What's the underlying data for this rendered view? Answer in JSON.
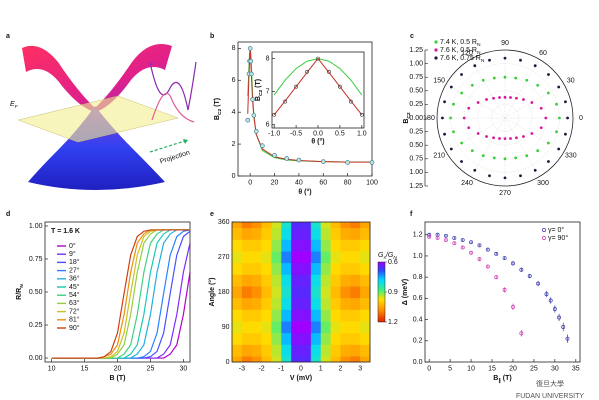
{
  "panel_labels": [
    "a",
    "b",
    "c",
    "d",
    "e",
    "f"
  ],
  "illustration": {
    "fermi_label": [
      "E",
      "F"
    ],
    "projection": "Projection"
  },
  "watermark": {
    "cn": "復旦大學",
    "en": "FUDAN UNIVERSITY"
  },
  "chart_data": [
    {
      "type": "line",
      "xlabel": "θ (°)",
      "ylabel": [
        "B",
        "C2",
        " (T)"
      ],
      "x": [
        -2,
        -1,
        -0.5,
        0,
        0.5,
        1,
        2,
        3,
        5,
        10,
        20,
        30,
        40,
        60,
        80,
        100
      ],
      "series": [
        {
          "style": "markers",
          "color": "#2f6f7f",
          "values": [
            3.5,
            6.4,
            7.2,
            8.0,
            7.2,
            6.4,
            4.8,
            3.8,
            2.8,
            1.9,
            1.3,
            1.1,
            1.0,
            0.9,
            0.85,
            0.85
          ]
        },
        {
          "style": "line",
          "color": "#3ccc3c",
          "values": [
            5.0,
            6.9,
            7.7,
            8.0,
            7.7,
            6.9,
            5.0,
            3.9,
            2.6,
            1.6,
            1.15,
            1.0,
            0.95,
            0.9,
            0.88,
            0.88
          ]
        },
        {
          "style": "line",
          "color": "#c4302a",
          "values": [
            3.9,
            6.3,
            7.15,
            8.0,
            7.15,
            6.3,
            4.7,
            3.7,
            2.6,
            1.7,
            1.2,
            1.05,
            0.97,
            0.9,
            0.87,
            0.87
          ]
        }
      ],
      "xlim": [
        -10,
        100
      ],
      "xticks": [
        0,
        20,
        40,
        60,
        80,
        100
      ],
      "ylim": [
        0,
        8.4
      ],
      "yticks": [
        0,
        2,
        4,
        6,
        8
      ]
    },
    {
      "type": "line",
      "xlabel": "θ (°)",
      "ylabel": [
        "B",
        "C2",
        " (T)"
      ],
      "x": [
        -1,
        -0.75,
        -0.5,
        -0.25,
        0,
        0.25,
        0.5,
        0.75,
        1
      ],
      "series": [
        {
          "style": "line",
          "color": "#3ccc3c",
          "values": [
            6.9,
            7.35,
            7.7,
            7.92,
            8.0,
            7.92,
            7.7,
            7.35,
            6.9
          ]
        },
        {
          "style": "line",
          "color": "#c4302a",
          "values": [
            6.3,
            6.72,
            7.15,
            7.58,
            8.0,
            7.58,
            7.15,
            6.72,
            6.3
          ]
        },
        {
          "style": "markers",
          "color": "#333333",
          "values": [
            6.3,
            6.7,
            7.15,
            7.6,
            8.0,
            7.6,
            7.15,
            6.7,
            6.3
          ]
        }
      ],
      "xlim": [
        -1.05,
        1.05
      ],
      "xticks": [
        {
          "value": -1,
          "label": "-1.0"
        },
        {
          "value": -0.5,
          "label": "-0.5"
        },
        {
          "value": 0,
          "label": "0.0"
        },
        {
          "value": 0.5,
          "label": "0.5"
        },
        {
          "value": 1,
          "label": "1.0"
        }
      ],
      "ylim": [
        5.9,
        8.2
      ],
      "yticks": [
        6,
        7,
        8
      ]
    },
    {
      "type": "polar",
      "ylabel": [
        "B",
        "C2"
      ],
      "theta": [
        0,
        15,
        30,
        45,
        60,
        75,
        90,
        105,
        120,
        135,
        150,
        165,
        180,
        195,
        210,
        225,
        240,
        255,
        270,
        285,
        300,
        315,
        330,
        345
      ],
      "series": [
        {
          "name": [
            "7.4 K, 0.5 R",
            "N"
          ],
          "color": "#3ccc3c",
          "values": [
            1.0,
            0.98,
            0.92,
            0.85,
            0.8,
            0.76,
            0.75,
            0.76,
            0.8,
            0.85,
            0.92,
            0.98,
            1.0,
            0.98,
            0.92,
            0.85,
            0.8,
            0.76,
            0.75,
            0.76,
            0.8,
            0.85,
            0.92,
            0.98
          ]
        },
        {
          "name": [
            "7.6 K, 0.5 R",
            "N"
          ],
          "color": "#d6189a",
          "values": [
            0.75,
            0.69,
            0.57,
            0.48,
            0.42,
            0.39,
            0.38,
            0.39,
            0.42,
            0.48,
            0.57,
            0.69,
            0.75,
            0.69,
            0.57,
            0.48,
            0.42,
            0.39,
            0.38,
            0.39,
            0.42,
            0.48,
            0.57,
            0.69
          ]
        },
        {
          "name": [
            "7.6 K, 0.75 R",
            "N"
          ],
          "color": "#1a1a3a",
          "values": [
            1.15,
            1.15,
            1.14,
            1.13,
            1.11,
            1.1,
            1.1,
            1.1,
            1.11,
            1.13,
            1.14,
            1.15,
            1.15,
            1.15,
            1.14,
            1.13,
            1.11,
            1.1,
            1.1,
            1.1,
            1.11,
            1.13,
            1.14,
            1.15
          ]
        }
      ],
      "rlim": [
        0,
        1.25
      ],
      "rticks": [
        {
          "value": 0,
          "label": "0.00"
        },
        {
          "value": 0.25,
          "label": "0.25"
        },
        {
          "value": 0.5,
          "label": "0.50"
        },
        {
          "value": 0.75,
          "label": "0.75"
        },
        {
          "value": 1,
          "label": "1.00"
        },
        {
          "value": 1.25,
          "label": "1.25"
        }
      ],
      "thetaticks": [
        0,
        30,
        60,
        90,
        120,
        150,
        180,
        210,
        240,
        270,
        300,
        330
      ],
      "legend": "upper left"
    },
    {
      "type": "line",
      "annotation": "T = 1.6 K",
      "xlabel": "B (T)",
      "ylabel": [
        "R/R",
        "N"
      ],
      "x": [
        10,
        15,
        16,
        17,
        18,
        19,
        20,
        21,
        22,
        23,
        24,
        25,
        26,
        27,
        28,
        29,
        30,
        31
      ],
      "series": [
        {
          "name": "0°",
          "color": "#b000c8",
          "values": [
            0,
            0,
            0,
            0,
            0,
            0,
            0,
            0,
            0,
            0,
            0,
            0,
            0,
            0,
            0.03,
            0.1,
            0.33,
            0.65
          ]
        },
        {
          "name": "9°",
          "color": "#7f2aff",
          "values": [
            0,
            0,
            0,
            0,
            0,
            0,
            0,
            0,
            0,
            0,
            0,
            0,
            0,
            0.03,
            0.1,
            0.33,
            0.65,
            0.87
          ]
        },
        {
          "name": "18°",
          "color": "#4a50ff",
          "values": [
            0,
            0,
            0,
            0,
            0,
            0,
            0,
            0,
            0,
            0,
            0,
            0.01,
            0.05,
            0.19,
            0.49,
            0.78,
            0.92,
            0.96
          ]
        },
        {
          "name": "27°",
          "color": "#2a80ff",
          "values": [
            0,
            0,
            0,
            0,
            0,
            0,
            0,
            0,
            0,
            0,
            0.01,
            0.05,
            0.19,
            0.49,
            0.78,
            0.92,
            0.96,
            0.97
          ]
        },
        {
          "name": "36°",
          "color": "#1fb0e0",
          "values": [
            0,
            0,
            0,
            0,
            0,
            0,
            0,
            0,
            0,
            0.03,
            0.1,
            0.33,
            0.65,
            0.87,
            0.94,
            0.97,
            0.97,
            0.97
          ]
        },
        {
          "name": "45°",
          "color": "#19c8b4",
          "values": [
            0,
            0,
            0,
            0,
            0,
            0,
            0,
            0,
            0.03,
            0.1,
            0.33,
            0.65,
            0.87,
            0.94,
            0.97,
            0.97,
            0.97,
            0.97
          ]
        },
        {
          "name": "54°",
          "color": "#40d080",
          "values": [
            0,
            0,
            0,
            0,
            0,
            0,
            0,
            0.03,
            0.1,
            0.33,
            0.65,
            0.87,
            0.94,
            0.97,
            0.97,
            0.97,
            0.97,
            0.97
          ]
        },
        {
          "name": "63°",
          "color": "#90d040",
          "values": [
            0,
            0,
            0,
            0,
            0,
            0,
            0.03,
            0.1,
            0.33,
            0.65,
            0.87,
            0.94,
            0.97,
            0.97,
            0.97,
            0.97,
            0.97,
            0.97
          ]
        },
        {
          "name": "72°",
          "color": "#d0c020",
          "values": [
            0,
            0,
            0,
            0,
            0,
            0.01,
            0.05,
            0.19,
            0.49,
            0.78,
            0.92,
            0.96,
            0.97,
            0.97,
            0.97,
            0.97,
            0.97,
            0.97
          ]
        },
        {
          "name": "81°",
          "color": "#e89010",
          "values": [
            0,
            0,
            0,
            0,
            0.01,
            0.03,
            0.1,
            0.33,
            0.65,
            0.87,
            0.94,
            0.97,
            0.97,
            0.97,
            0.97,
            0.97,
            0.97,
            0.97
          ]
        },
        {
          "name": "90°",
          "color": "#d04010",
          "values": [
            0,
            0,
            0,
            0,
            0.01,
            0.05,
            0.19,
            0.49,
            0.78,
            0.92,
            0.96,
            0.97,
            0.97,
            0.97,
            0.97,
            0.97,
            0.97,
            0.97
          ]
        }
      ],
      "xlim": [
        9,
        31
      ],
      "xticks": [
        10,
        15,
        20,
        25,
        30
      ],
      "ylim": [
        -0.03,
        1.03
      ],
      "yticks": [
        {
          "value": 0,
          "label": "0.00"
        },
        {
          "value": 0.25,
          "label": "0.25"
        },
        {
          "value": 0.5,
          "label": "0.50"
        },
        {
          "value": 0.75,
          "label": "0.75"
        },
        {
          "value": 1,
          "label": "1.00"
        }
      ],
      "legend": "upper left"
    },
    {
      "type": "heatmap",
      "xlabel": "V (mV)",
      "ylabel": "Angle (°)",
      "x": [
        -3.25,
        -2.75,
        -2.25,
        -1.75,
        -1.25,
        -0.75,
        -0.25,
        0.25,
        0.75,
        1.25,
        1.75,
        2.25,
        2.75,
        3.25
      ],
      "y": [
        0,
        30,
        60,
        90,
        120,
        150,
        180,
        210,
        240,
        270,
        300,
        330,
        360
      ],
      "z": [
        [
          1.05,
          1.1,
          1.08,
          1.02,
          0.95,
          0.82,
          0.65,
          0.65,
          0.82,
          0.95,
          1.02,
          1.08,
          1.1,
          1.05
        ],
        [
          1.02,
          1.05,
          1.04,
          1.0,
          0.94,
          0.8,
          0.64,
          0.64,
          0.8,
          0.94,
          1.0,
          1.04,
          1.05,
          1.02
        ],
        [
          0.98,
          1.0,
          1.0,
          0.98,
          0.92,
          0.76,
          0.62,
          0.62,
          0.76,
          0.92,
          0.98,
          1.0,
          1.0,
          0.98
        ],
        [
          0.96,
          0.98,
          0.98,
          0.96,
          0.9,
          0.72,
          0.6,
          0.6,
          0.72,
          0.9,
          0.96,
          0.98,
          0.98,
          0.96
        ],
        [
          0.98,
          1.0,
          1.0,
          0.98,
          0.92,
          0.76,
          0.62,
          0.62,
          0.76,
          0.92,
          0.98,
          1.0,
          1.0,
          0.98
        ],
        [
          1.02,
          1.05,
          1.04,
          1.0,
          0.94,
          0.8,
          0.64,
          0.64,
          0.8,
          0.94,
          1.0,
          1.04,
          1.05,
          1.02
        ],
        [
          1.05,
          1.1,
          1.08,
          1.02,
          0.95,
          0.82,
          0.65,
          0.65,
          0.82,
          0.95,
          1.02,
          1.08,
          1.1,
          1.05
        ],
        [
          1.02,
          1.05,
          1.04,
          1.0,
          0.94,
          0.8,
          0.64,
          0.64,
          0.8,
          0.94,
          1.0,
          1.04,
          1.05,
          1.02
        ],
        [
          0.98,
          1.0,
          1.0,
          0.98,
          0.92,
          0.76,
          0.62,
          0.62,
          0.76,
          0.92,
          0.98,
          1.0,
          1.0,
          0.98
        ],
        [
          0.96,
          0.98,
          0.98,
          0.96,
          0.9,
          0.72,
          0.6,
          0.6,
          0.72,
          0.9,
          0.96,
          0.98,
          0.98,
          0.96
        ],
        [
          0.98,
          1.0,
          1.0,
          0.98,
          0.92,
          0.76,
          0.62,
          0.62,
          0.76,
          0.92,
          0.98,
          1.0,
          1.0,
          0.98
        ],
        [
          1.02,
          1.05,
          1.04,
          1.0,
          0.94,
          0.8,
          0.64,
          0.64,
          0.8,
          0.94,
          1.0,
          1.04,
          1.05,
          1.02
        ],
        [
          1.05,
          1.1,
          1.08,
          1.02,
          0.95,
          0.82,
          0.65,
          0.65,
          0.82,
          0.95,
          1.02,
          1.08,
          1.1,
          1.05
        ]
      ],
      "xlim": [
        -3.5,
        3.5
      ],
      "xticks": [
        -3,
        -2,
        -1,
        0,
        1,
        2,
        3
      ],
      "ylim": [
        0,
        360
      ],
      "yticks": [
        0,
        90,
        180,
        270,
        360
      ],
      "colorbar": {
        "label": [
          "G",
          "s",
          "/G",
          "N"
        ],
        "lim": [
          0.6,
          1.2
        ],
        "ticks": [
          0.6,
          0.9,
          1.2
        ]
      }
    },
    {
      "type": "scatter",
      "xlabel": [
        "B",
        "∥",
        " (T)"
      ],
      "ylabel": "Δ (meV)",
      "series": [
        {
          "name": "γ= 0°",
          "color": "#3a3ab0",
          "x": [
            0,
            2,
            4,
            6,
            8,
            10,
            12,
            14,
            16,
            18,
            20,
            22,
            24,
            26,
            28,
            29,
            30,
            31,
            32,
            33
          ],
          "values": [
            1.2,
            1.2,
            1.19,
            1.17,
            1.15,
            1.13,
            1.1,
            1.06,
            1.02,
            0.98,
            0.93,
            0.87,
            0.81,
            0.74,
            0.64,
            0.58,
            0.5,
            0.42,
            0.33,
            0.22
          ],
          "errors": [
            0.01,
            0.01,
            0.01,
            0.01,
            0.01,
            0.01,
            0.01,
            0.01,
            0.015,
            0.015,
            0.02,
            0.02,
            0.02,
            0.025,
            0.03,
            0.03,
            0.035,
            0.035,
            0.04,
            0.04
          ]
        },
        {
          "name": "γ= 90°",
          "color": "#d23cb4",
          "x": [
            0,
            2,
            4,
            6,
            8,
            10,
            12,
            14,
            16,
            18,
            20,
            22
          ],
          "values": [
            1.18,
            1.17,
            1.15,
            1.12,
            1.08,
            1.03,
            0.97,
            0.9,
            0.8,
            0.68,
            0.52,
            0.27
          ],
          "errors": [
            0.01,
            0.01,
            0.01,
            0.01,
            0.01,
            0.015,
            0.015,
            0.02,
            0.02,
            0.025,
            0.03,
            0.03
          ]
        }
      ],
      "xlim": [
        -1,
        36
      ],
      "xticks": [
        0,
        5,
        10,
        15,
        20,
        25,
        30,
        35
      ],
      "ylim": [
        0,
        1.32
      ],
      "yticks": [
        {
          "value": 0,
          "label": "0.0"
        },
        {
          "value": 0.2,
          "label": "0.2"
        },
        {
          "value": 0.4,
          "label": "0.4"
        },
        {
          "value": 0.6,
          "label": "0.6"
        },
        {
          "value": 0.8,
          "label": "0.8"
        },
        {
          "value": 1,
          "label": "1.0"
        },
        {
          "value": 1.2,
          "label": "1.2"
        }
      ],
      "legend": "upper right"
    }
  ]
}
